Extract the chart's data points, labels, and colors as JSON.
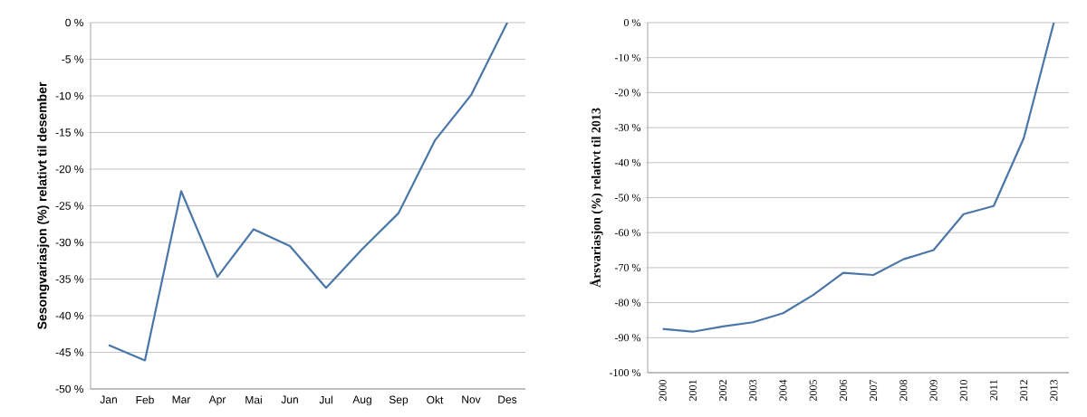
{
  "chart_data": [
    {
      "type": "line",
      "ylabel": "Sesongvariasjon (%)  relativt til desember",
      "categories": [
        "Jan",
        "Feb",
        "Mar",
        "Apr",
        "Mai",
        "Jun",
        "Jul",
        "Aug",
        "Sep",
        "Okt",
        "Nov",
        "Des"
      ],
      "series": [
        {
          "color": "#4a76a8",
          "values": [
            -44.0,
            -46.1,
            -23.0,
            -34.7,
            -28.2,
            -30.5,
            -36.2,
            -30.9,
            -26.0,
            -16.1,
            -9.9,
            0
          ]
        }
      ],
      "ylim": [
        -50,
        0
      ],
      "yticks": [
        {
          "value": -50,
          "label": "-50 %"
        },
        {
          "value": -45,
          "label": "-45 %"
        },
        {
          "value": -40,
          "label": "-40 %"
        },
        {
          "value": -35,
          "label": "-35 %"
        },
        {
          "value": -30,
          "label": "-30 %"
        },
        {
          "value": -25,
          "label": "-25 %"
        },
        {
          "value": -20,
          "label": "-20 %"
        },
        {
          "value": -15,
          "label": "-15 %"
        },
        {
          "value": -10,
          "label": "-10 %"
        },
        {
          "value": -5,
          "label": "-5 %"
        },
        {
          "value": 0,
          "label": "0 %"
        }
      ],
      "grid": "y"
    },
    {
      "type": "line",
      "ylabel": "Årsvariasjon (%) relativt til 2013",
      "categories": [
        "2000",
        "2001",
        "2002",
        "2003",
        "2004",
        "2005",
        "2006",
        "2007",
        "2008",
        "2009",
        "2010",
        "2011",
        "2012",
        "2013"
      ],
      "series": [
        {
          "color": "#4a76a8",
          "values": [
            -87.5,
            -88.3,
            -86.8,
            -85.6,
            -83.0,
            -77.8,
            -71.5,
            -72.1,
            -67.6,
            -65.0,
            -54.7,
            -52.4,
            -33.0,
            0
          ]
        }
      ],
      "ylim": [
        -100,
        0
      ],
      "yticks": [
        {
          "value": -100,
          "label": "-100 %"
        },
        {
          "value": -90,
          "label": "-90 %"
        },
        {
          "value": -80,
          "label": "-80 %"
        },
        {
          "value": -70,
          "label": "-70 %"
        },
        {
          "value": -60,
          "label": "-60 %"
        },
        {
          "value": -50,
          "label": "-50 %"
        },
        {
          "value": -40,
          "label": "-40 %"
        },
        {
          "value": -30,
          "label": "-30 %"
        },
        {
          "value": -20,
          "label": "-20 %"
        },
        {
          "value": -10,
          "label": "-10 %"
        },
        {
          "value": 0,
          "label": "0 %"
        }
      ],
      "grid": "y"
    }
  ]
}
